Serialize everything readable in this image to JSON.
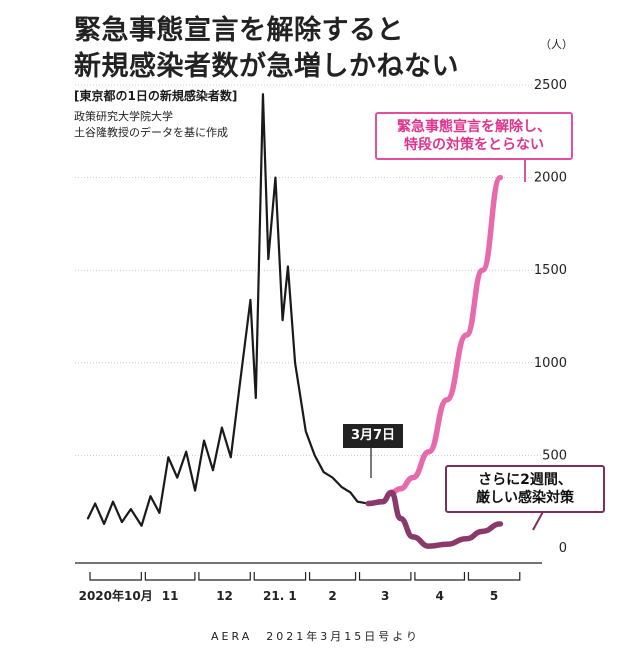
{
  "title_line1": "緊急事態宣言を解除すると",
  "title_line2": "新規感染者数が急増しかねない",
  "subtitle": "[東京都の1日の新規感染者数]",
  "source_line1": "政策研究大学院大学",
  "source_line2": "土谷隆教授のデータを基に作成",
  "unit": "（人）",
  "callouts": {
    "pink": [
      "緊急事態宣言を解除し、",
      "特段の対策をとらない"
    ],
    "purple": [
      "さらに2週間、",
      "厳しい感染対策"
    ],
    "date": "3月7日"
  },
  "footer": "AERA　2021年3月15日号より",
  "chart_data": {
    "type": "line",
    "ylim": [
      0,
      2500
    ],
    "yticks": [
      0,
      500,
      1000,
      1500,
      2000,
      2500
    ],
    "month_labels": [
      "2020年10月",
      "11",
      "12",
      "21. 1",
      "2",
      "3",
      "4",
      "5"
    ],
    "series": [
      {
        "name": "actual",
        "color": "#1a1a1a",
        "x": [
          "2020-10-01",
          "2020-10-05",
          "2020-10-10",
          "2020-10-15",
          "2020-10-20",
          "2020-10-25",
          "2020-10-31",
          "2020-11-05",
          "2020-11-10",
          "2020-11-15",
          "2020-11-20",
          "2020-11-25",
          "2020-11-30",
          "2020-12-05",
          "2020-12-10",
          "2020-12-15",
          "2020-12-20",
          "2020-12-25",
          "2020-12-31",
          "2021-01-03",
          "2021-01-07",
          "2021-01-10",
          "2021-01-14",
          "2021-01-18",
          "2021-01-21",
          "2021-01-25",
          "2021-01-31",
          "2021-02-05",
          "2021-02-10",
          "2021-02-15",
          "2021-02-20",
          "2021-02-25",
          "2021-03-01",
          "2021-03-07"
        ],
        "y": [
          160,
          240,
          130,
          250,
          140,
          210,
          120,
          280,
          190,
          490,
          380,
          520,
          310,
          580,
          420,
          650,
          490,
          880,
          1340,
          810,
          2450,
          1560,
          2000,
          1230,
          1520,
          1000,
          630,
          500,
          410,
          380,
          330,
          300,
          250,
          240
        ]
      },
      {
        "name": "no-measures",
        "color": "#e86aad",
        "x": [
          "2021-03-07",
          "2021-03-15",
          "2021-03-20",
          "2021-03-25",
          "2021-04-01",
          "2021-04-10",
          "2021-04-20",
          "2021-05-01",
          "2021-05-10",
          "2021-05-20"
        ],
        "y": [
          240,
          250,
          300,
          320,
          380,
          520,
          800,
          1150,
          1500,
          2000
        ]
      },
      {
        "name": "strict-measures",
        "color": "#8a3a6a",
        "x": [
          "2021-03-07",
          "2021-03-15",
          "2021-03-20",
          "2021-03-25",
          "2021-04-01",
          "2021-04-10",
          "2021-04-20",
          "2021-05-01",
          "2021-05-10",
          "2021-05-20"
        ],
        "y": [
          240,
          250,
          300,
          160,
          60,
          10,
          20,
          50,
          90,
          130
        ]
      }
    ]
  }
}
